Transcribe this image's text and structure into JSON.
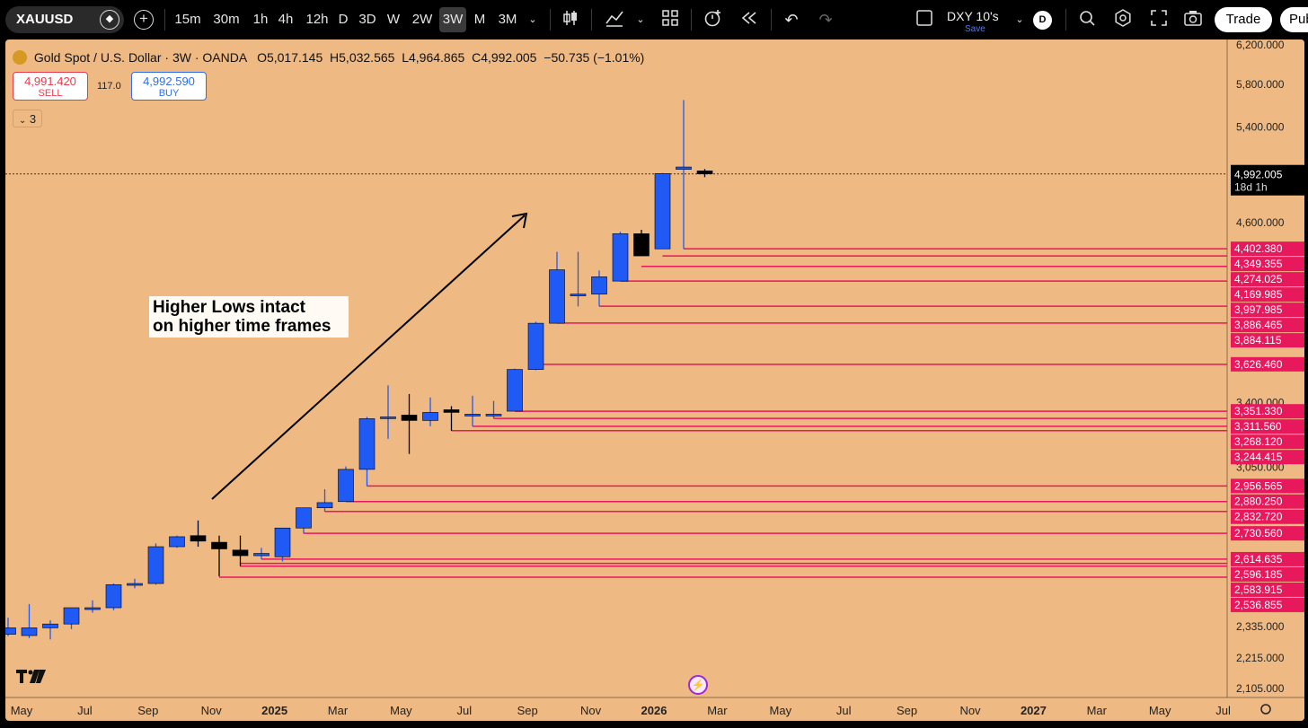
{
  "toolbar": {
    "symbol": "XAUUSD",
    "timeframes": [
      {
        "label": "15m",
        "active": false
      },
      {
        "label": "30m",
        "active": false
      },
      {
        "label": "1h",
        "active": false
      },
      {
        "label": "4h",
        "active": false
      },
      {
        "label": "12h",
        "active": false
      },
      {
        "label": "D",
        "active": false
      },
      {
        "label": "3D",
        "active": false
      },
      {
        "label": "W",
        "active": false
      },
      {
        "label": "2W",
        "active": false
      },
      {
        "label": "3W",
        "active": true
      },
      {
        "label": "M",
        "active": false
      },
      {
        "label": "3M",
        "active": false
      }
    ],
    "layout_name": "DXY 10's",
    "save_label": "Save",
    "avatar_letter": "D",
    "trade_label": "Trade",
    "publish_label": "Pub"
  },
  "legend": {
    "title": "Gold Spot / U.S. Dollar · 3W · OANDA",
    "open": "O5,017.145",
    "high": "H5,032.565",
    "low": "L4,964.865",
    "close": "C4,992.005",
    "change": "−50.735 (−1.01%)"
  },
  "order_panel": {
    "sell_price": "4,991.420",
    "sell_label": "SELL",
    "spread": "117.0",
    "buy_price": "4,992.590",
    "buy_label": "BUY"
  },
  "indicators_count": "3",
  "annotation": {
    "line1": "Higher Lows intact",
    "line2": "on higher time frames"
  },
  "colors": {
    "background": "#eeb983",
    "bull": "#1f5af5",
    "bear": "#000000",
    "level_line": "#e8185c",
    "level_label_bg": "#e8185c",
    "current_price_bg": "#000000"
  },
  "chart_data": {
    "type": "candlestick",
    "y_scale": "log",
    "price_ticks": [
      "6,200.000",
      "5,800.000",
      "5,400.000",
      "4,600.000",
      "3,400.000",
      "3,050.000",
      "2,335.000",
      "2,215.000",
      "2,105.000"
    ],
    "time_ticks": [
      "May",
      "Jul",
      "Sep",
      "Nov",
      "2025",
      "Mar",
      "May",
      "Jul",
      "Sep",
      "Nov",
      "2026",
      "Mar",
      "May",
      "Jul",
      "Sep",
      "Nov",
      "2027",
      "Mar",
      "May",
      "Jul"
    ],
    "current_price": "4,992.005",
    "current_countdown": "18d 1h",
    "candles": [
      {
        "o": 2305,
        "h": 2370,
        "l": 2298,
        "c": 2330
      },
      {
        "o": 2300,
        "h": 2425,
        "l": 2290,
        "c": 2330
      },
      {
        "o": 2330,
        "h": 2360,
        "l": 2285,
        "c": 2345
      },
      {
        "o": 2345,
        "h": 2410,
        "l": 2325,
        "c": 2410
      },
      {
        "o": 2410,
        "h": 2440,
        "l": 2390,
        "c": 2410
      },
      {
        "o": 2410,
        "h": 2510,
        "l": 2400,
        "c": 2505
      },
      {
        "o": 2505,
        "h": 2530,
        "l": 2490,
        "c": 2510
      },
      {
        "o": 2510,
        "h": 2685,
        "l": 2505,
        "c": 2670
      },
      {
        "o": 2670,
        "h": 2720,
        "l": 2665,
        "c": 2715
      },
      {
        "o": 2720,
        "h": 2790,
        "l": 2670,
        "c": 2695
      },
      {
        "o": 2690,
        "h": 2720,
        "l": 2540,
        "c": 2660
      },
      {
        "o": 2655,
        "h": 2720,
        "l": 2584,
        "c": 2630
      },
      {
        "o": 2630,
        "h": 2665,
        "l": 2614,
        "c": 2640
      },
      {
        "o": 2625,
        "h": 2755,
        "l": 2605,
        "c": 2755
      },
      {
        "o": 2755,
        "h": 2850,
        "l": 2730,
        "c": 2850
      },
      {
        "o": 2850,
        "h": 2940,
        "l": 2832,
        "c": 2875
      },
      {
        "o": 2880,
        "h": 3055,
        "l": 2880,
        "c": 3040
      },
      {
        "o": 3040,
        "h": 3320,
        "l": 2956,
        "c": 3310
      },
      {
        "o": 3320,
        "h": 3500,
        "l": 3200,
        "c": 3320
      },
      {
        "o": 3330,
        "h": 3450,
        "l": 3120,
        "c": 3300
      },
      {
        "o": 3300,
        "h": 3430,
        "l": 3268,
        "c": 3345
      },
      {
        "o": 3360,
        "h": 3380,
        "l": 3244,
        "c": 3345
      },
      {
        "o": 3335,
        "h": 3440,
        "l": 3268,
        "c": 3335
      },
      {
        "o": 3335,
        "h": 3410,
        "l": 3311,
        "c": 3335
      },
      {
        "o": 3352,
        "h": 3600,
        "l": 3351,
        "c": 3595
      },
      {
        "o": 3595,
        "h": 3895,
        "l": 3590,
        "c": 3885
      },
      {
        "o": 3885,
        "h": 4380,
        "l": 3884,
        "c": 4250
      },
      {
        "o": 4080,
        "h": 4380,
        "l": 3997,
        "c": 4080
      },
      {
        "o": 4080,
        "h": 4245,
        "l": 3998,
        "c": 4200
      },
      {
        "o": 4170,
        "h": 4530,
        "l": 4170,
        "c": 4515
      },
      {
        "o": 4515,
        "h": 4545,
        "l": 4350,
        "c": 4350
      },
      {
        "o": 4402,
        "h": 5000,
        "l": 4402,
        "c": 4995
      },
      {
        "o": 5030,
        "h": 5650,
        "l": 4402,
        "c": 5050
      },
      {
        "o": 5017.145,
        "h": 5032.565,
        "l": 4964.865,
        "c": 4992.005
      }
    ],
    "levels": [
      {
        "price": 4402.38,
        "label": "4,402.380",
        "from_candle": 32,
        "show_line": true
      },
      {
        "price": 4349.355,
        "label": "4,349.355",
        "from_candle": 31,
        "show_line": true
      },
      {
        "price": 4274.025,
        "label": "4,274.025",
        "from_candle": 30,
        "show_line": true
      },
      {
        "price": 4169.985,
        "label": "4,169.985",
        "from_candle": 29,
        "show_line": true
      },
      {
        "price": 3997.985,
        "label": "3,997.985",
        "from_candle": 28,
        "show_line": true
      },
      {
        "price": 3886.465,
        "label": "3,886.465",
        "from_candle": 26,
        "show_line": true
      },
      {
        "price": 3884.115,
        "label": "3,884.115",
        "from_candle": 26,
        "show_line": false
      },
      {
        "price": 3626.46,
        "label": "3,626.460",
        "from_candle": 25,
        "show_line": true
      },
      {
        "price": 3351.33,
        "label": "3,351.330",
        "from_candle": 24,
        "show_line": true
      },
      {
        "price": 3311.56,
        "label": "3,311.560",
        "from_candle": 23,
        "show_line": true
      },
      {
        "price": 3268.12,
        "label": "3,268.120",
        "from_candle": 22,
        "show_line": true
      },
      {
        "price": 3244.415,
        "label": "3,244.415",
        "from_candle": 21,
        "show_line": true
      },
      {
        "price": 2956.565,
        "label": "2,956.565",
        "from_candle": 17,
        "show_line": true
      },
      {
        "price": 2880.25,
        "label": "2,880.250",
        "from_candle": 16,
        "show_line": true
      },
      {
        "price": 2832.72,
        "label": "2,832.720",
        "from_candle": 15,
        "show_line": true
      },
      {
        "price": 2730.56,
        "label": "2,730.560",
        "from_candle": 14,
        "show_line": true
      },
      {
        "price": 2614.635,
        "label": "2,614.635",
        "from_candle": 12,
        "show_line": true
      },
      {
        "price": 2596.185,
        "label": "2,596.185",
        "from_candle": 11,
        "show_line": true
      },
      {
        "price": 2583.915,
        "label": "2,583.915",
        "from_candle": 11,
        "show_line": true
      },
      {
        "price": 2536.855,
        "label": "2,536.855",
        "from_candle": 10,
        "show_line": true
      }
    ]
  }
}
